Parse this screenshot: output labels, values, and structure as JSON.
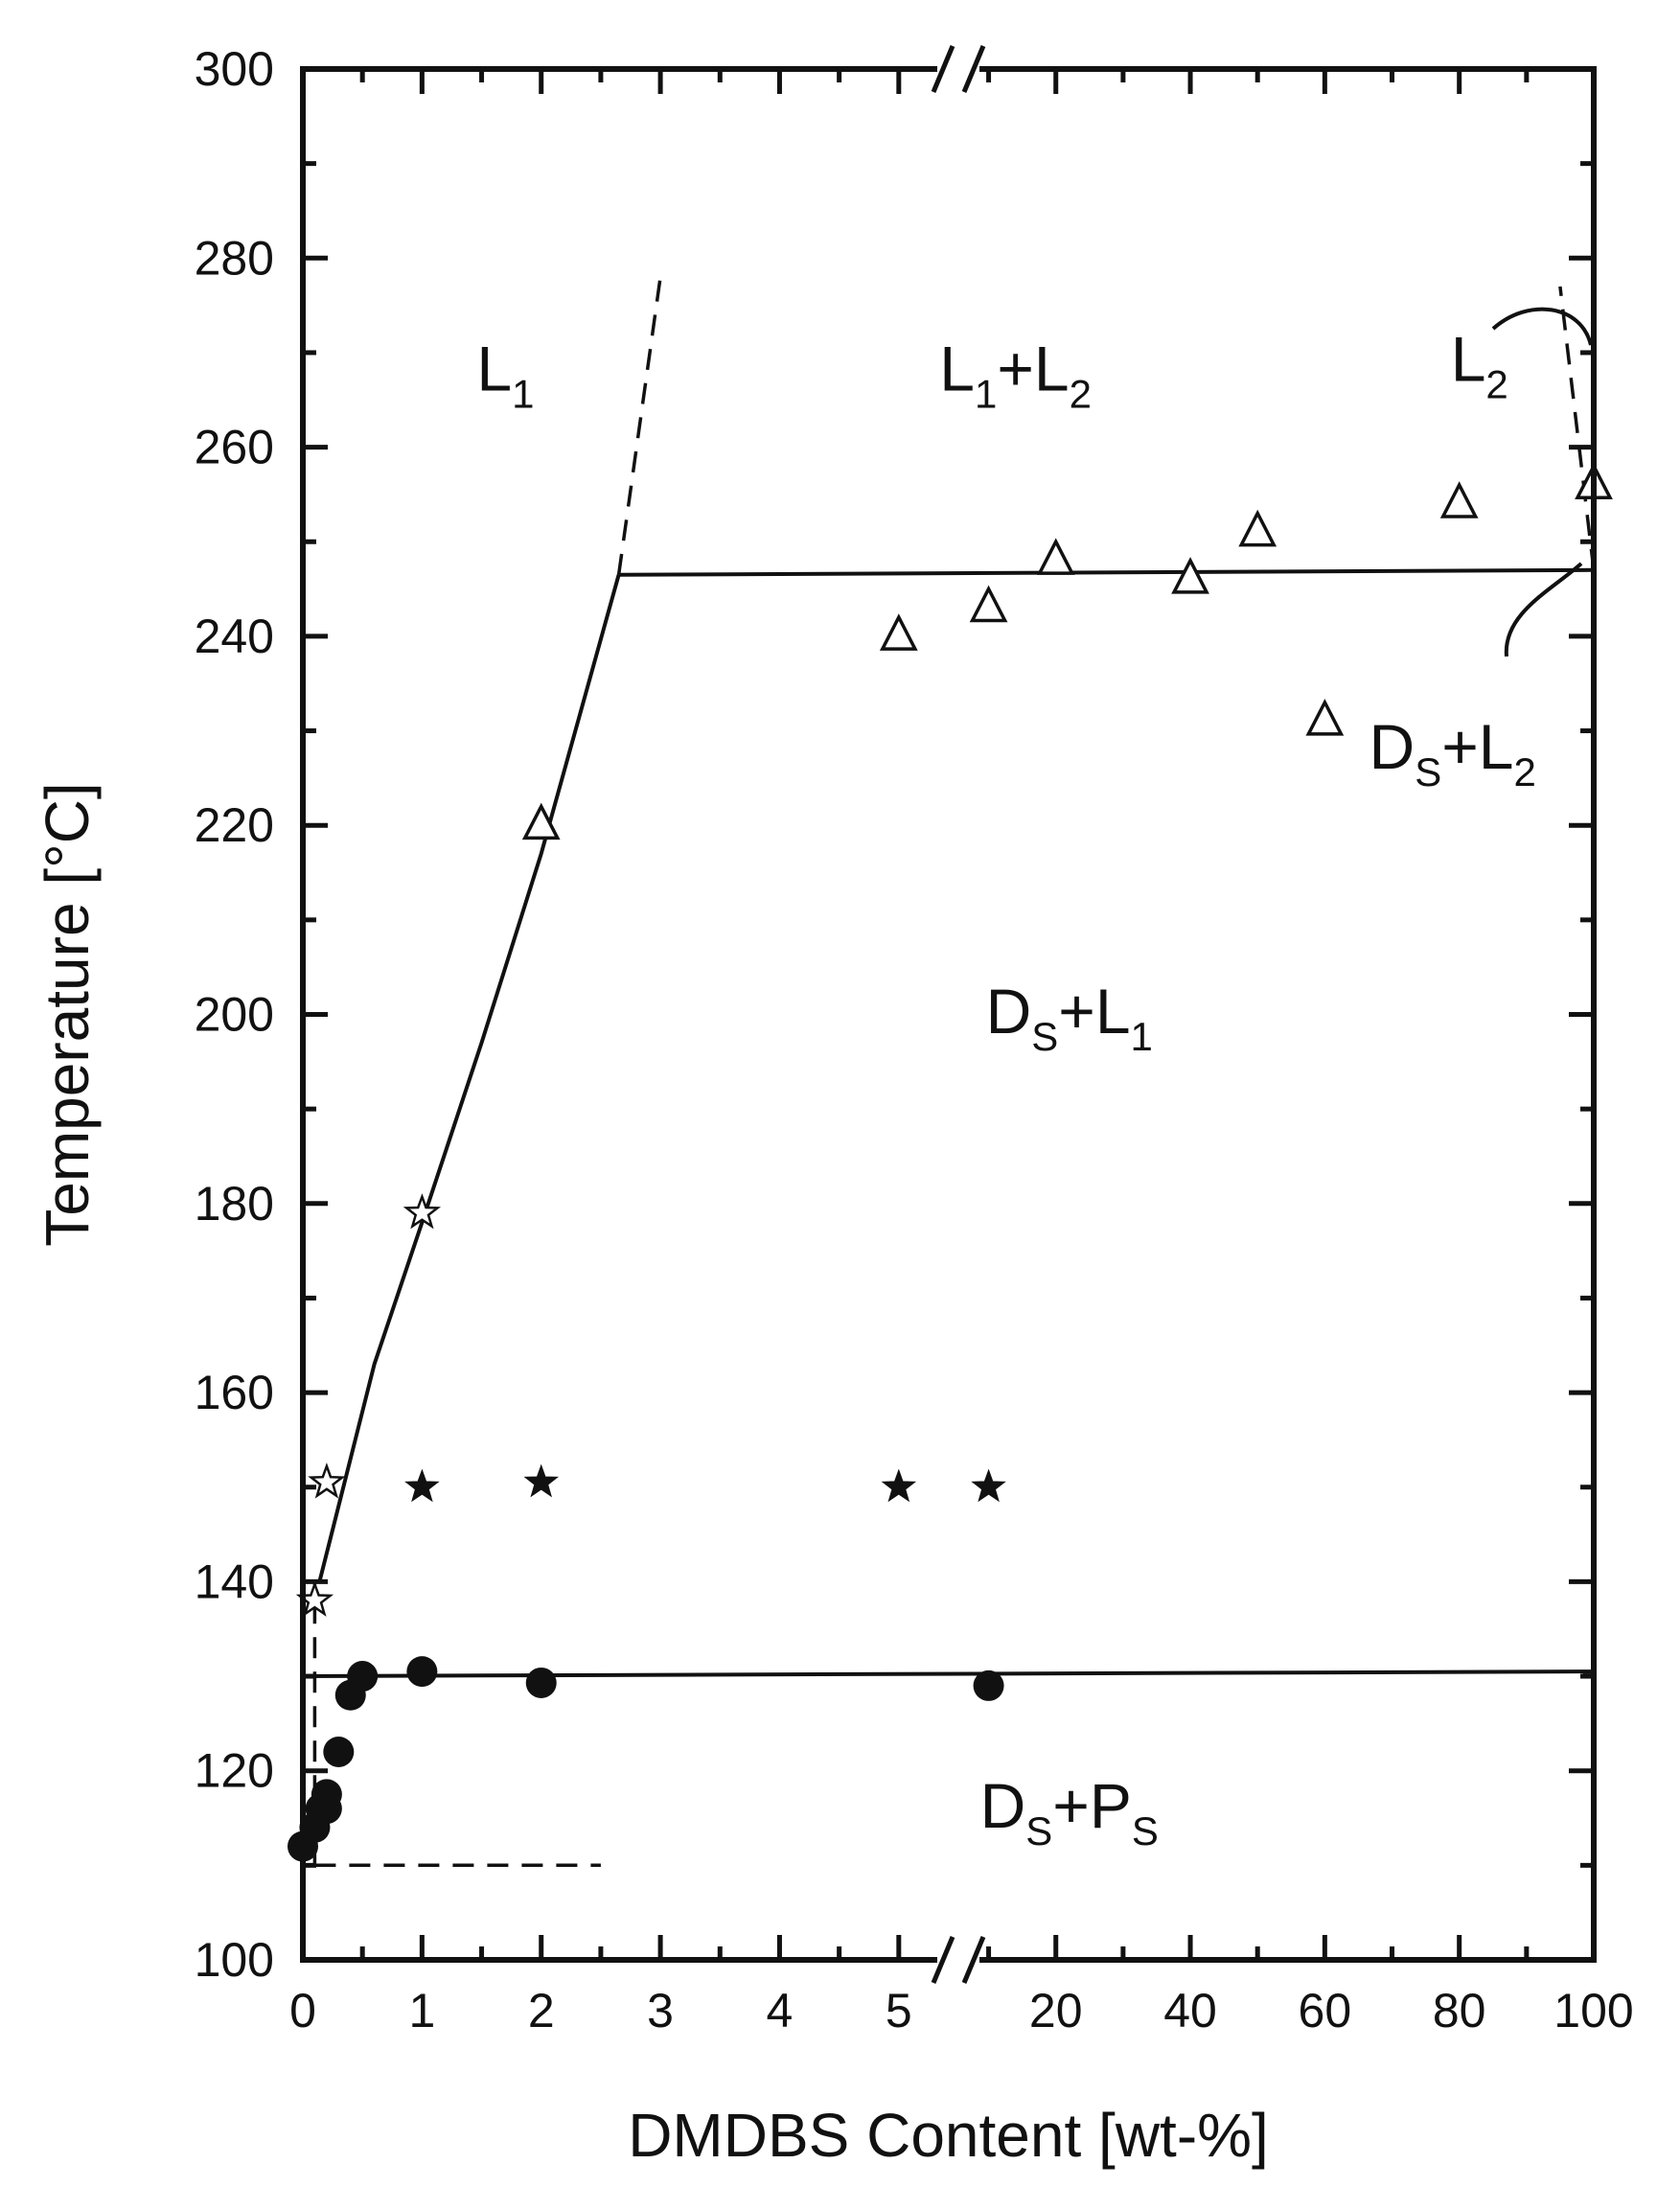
{
  "chart_data": {
    "type": "scatter",
    "title": "",
    "xlabel": "DMDBS Content [wt-%]",
    "ylabel": "Temperature [°C]",
    "ylim": [
      100,
      300
    ],
    "y_ticks": [
      100,
      120,
      140,
      160,
      180,
      200,
      220,
      240,
      260,
      280,
      300
    ],
    "x_axis_break": true,
    "x_segments": [
      {
        "range": [
          0,
          5.5
        ],
        "tick_labels": [
          "0",
          "1",
          "2",
          "3",
          "4",
          "5"
        ],
        "tick_values": [
          0,
          1,
          2,
          3,
          4,
          5
        ]
      },
      {
        "range": [
          5.5,
          100
        ],
        "tick_labels": [
          "20",
          "40",
          "60",
          "80",
          "100"
        ],
        "tick_values": [
          20,
          40,
          60,
          80,
          100
        ]
      }
    ],
    "series": [
      {
        "marker": "open-triangle",
        "points": [
          {
            "x": 2,
            "y": 220
          },
          {
            "x": 5,
            "y": 240
          },
          {
            "x": 10,
            "y": 243
          },
          {
            "x": 20,
            "y": 248
          },
          {
            "x": 40,
            "y": 246
          },
          {
            "x": 50,
            "y": 251
          },
          {
            "x": 60,
            "y": 231
          },
          {
            "x": 80,
            "y": 254
          },
          {
            "x": 100,
            "y": 256
          }
        ]
      },
      {
        "marker": "open-star",
        "points": [
          {
            "x": 0.1,
            "y": 138
          },
          {
            "x": 0.2,
            "y": 150.5
          },
          {
            "x": 1,
            "y": 179
          }
        ]
      },
      {
        "marker": "filled-star",
        "points": [
          {
            "x": 1,
            "y": 150
          },
          {
            "x": 2,
            "y": 150.5
          },
          {
            "x": 5,
            "y": 150
          },
          {
            "x": 10,
            "y": 150
          }
        ]
      },
      {
        "marker": "filled-circle",
        "points": [
          {
            "x": 0,
            "y": 112
          },
          {
            "x": 0.1,
            "y": 114
          },
          {
            "x": 0.15,
            "y": 116
          },
          {
            "x": 0.2,
            "y": 116
          },
          {
            "x": 0.2,
            "y": 117.5
          },
          {
            "x": 0.3,
            "y": 122
          },
          {
            "x": 0.4,
            "y": 128
          },
          {
            "x": 0.5,
            "y": 130
          },
          {
            "x": 1,
            "y": 130.5
          },
          {
            "x": 2,
            "y": 129.3
          },
          {
            "x": 10,
            "y": 129
          }
        ]
      }
    ],
    "lines": [
      {
        "style": "solid",
        "points": [
          [
            0.14,
            140
          ],
          [
            0.3,
            148
          ],
          [
            0.6,
            163
          ],
          [
            1.0,
            178
          ],
          [
            1.5,
            197
          ],
          [
            2.0,
            217
          ],
          [
            2.65,
            246.5
          ]
        ]
      },
      {
        "style": "dashed",
        "points": [
          [
            2.65,
            246.5
          ],
          [
            3.0,
            278
          ]
        ]
      },
      {
        "style": "solid",
        "points": [
          [
            2.65,
            246.5
          ],
          [
            100,
            247
          ]
        ]
      },
      {
        "style": "solid",
        "points": [
          [
            0,
            130
          ],
          [
            100,
            130.5
          ]
        ]
      },
      {
        "style": "dashed",
        "points": [
          [
            0.1,
            110
          ],
          [
            2.5,
            110
          ]
        ]
      },
      {
        "style": "dashed",
        "points": [
          [
            0.1,
            110
          ],
          [
            0.1,
            140
          ]
        ]
      },
      {
        "style": "dashed",
        "points": [
          [
            100,
            247
          ],
          [
            95,
            277
          ]
        ]
      }
    ],
    "regions": [
      {
        "main": "L",
        "sub": "1",
        "x": 1.7,
        "y": 266
      },
      {
        "main": "L",
        "sub": "1",
        "rest": "+L",
        "sub2": "2",
        "x": 14,
        "y": 266
      },
      {
        "main": "L",
        "sub": "2",
        "x": 83,
        "y": 267
      },
      {
        "main": "D",
        "sub": "S",
        "rest": "+L",
        "sub2": "2",
        "x": 79,
        "y": 226
      },
      {
        "main": "D",
        "sub": "S",
        "rest": "+L",
        "sub2": "1",
        "x": 22,
        "y": 198
      },
      {
        "main": "D",
        "sub": "S",
        "rest": "+P",
        "sub2": "S",
        "x": 22,
        "y": 114
      }
    ]
  }
}
